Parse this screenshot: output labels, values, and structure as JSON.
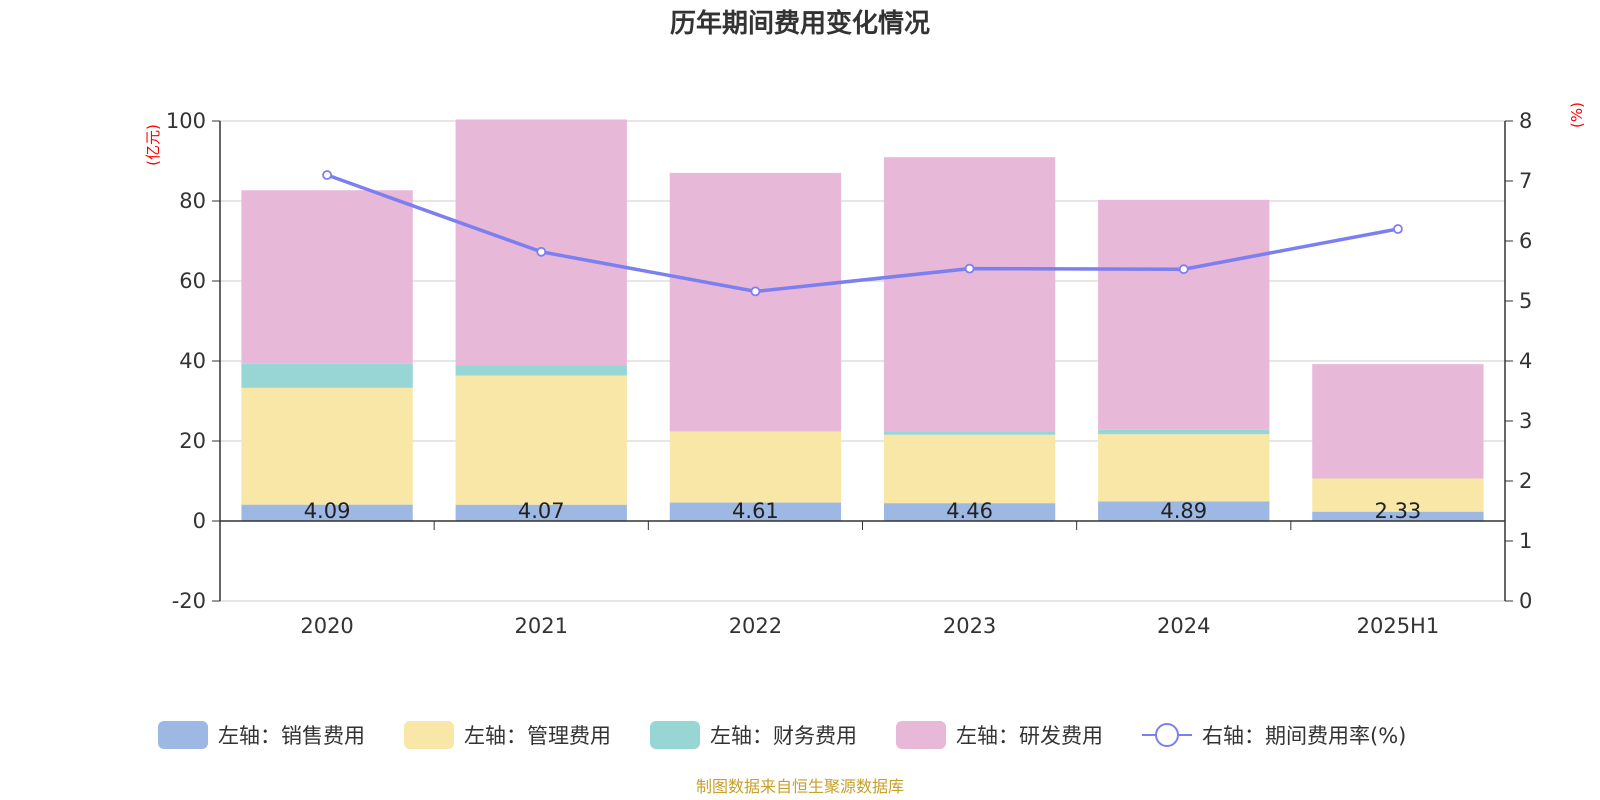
{
  "chart_data": {
    "type": "bar",
    "title": "历年期间费用变化情况",
    "categories": [
      "2020",
      "2021",
      "2022",
      "2023",
      "2024",
      "2025H1"
    ],
    "stacked": true,
    "left_axis": {
      "unit": "(亿元)",
      "ylim": [
        -20,
        100
      ],
      "ticks": [
        -20,
        0,
        20,
        40,
        60,
        80,
        100
      ]
    },
    "right_axis": {
      "unit": "(%)",
      "ylim": [
        0,
        8
      ],
      "ticks": [
        0,
        1,
        2,
        3,
        4,
        5,
        6,
        7,
        8
      ]
    },
    "grid": true,
    "legend_position": "bottom",
    "series": [
      {
        "name": "左轴：销售费用",
        "type": "bar",
        "axis": "left",
        "color": "#9cb8e3",
        "values": [
          4.09,
          4.07,
          4.61,
          4.46,
          4.89,
          2.33
        ],
        "labels": [
          "4.09",
          "4.07",
          "4.61",
          "4.46",
          "4.89",
          "2.33"
        ]
      },
      {
        "name": "左轴：管理费用",
        "type": "bar",
        "axis": "left",
        "color": "#f9e7a8",
        "values": [
          29.2,
          32.3,
          17.8,
          17.1,
          16.8,
          8.3
        ]
      },
      {
        "name": "左轴：财务费用",
        "type": "bar",
        "axis": "left",
        "color": "#98d5d5",
        "values": [
          6.0,
          2.5,
          0.1,
          0.8,
          1.1,
          0.0
        ]
      },
      {
        "name": "左轴：研发费用",
        "type": "bar",
        "axis": "left",
        "color": "#e8b8d9",
        "values": [
          43.4,
          61.5,
          64.5,
          68.6,
          57.5,
          28.6
        ]
      },
      {
        "name": "右轴：期间费用率(%)",
        "type": "line",
        "axis": "right",
        "color": "#7b7ff0",
        "values": [
          7.1,
          5.82,
          5.16,
          5.54,
          5.53,
          6.2
        ]
      }
    ],
    "source": "制图数据来自恒生聚源数据库"
  }
}
